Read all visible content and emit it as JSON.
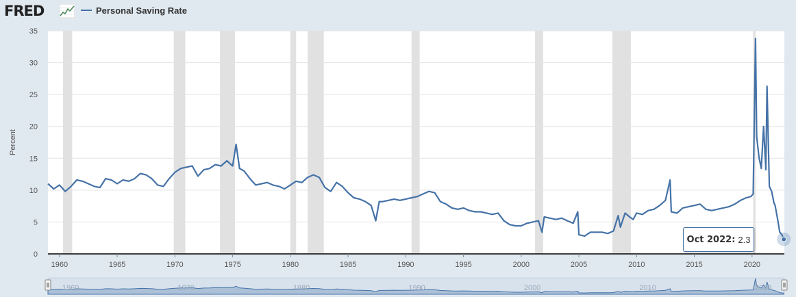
{
  "header": {
    "logo_text": "FRED",
    "logo_icon": "line-chart-icon",
    "legend_label": "Personal Saving Rate",
    "series_color": "#4572a7"
  },
  "tooltip": {
    "date": "Oct 2022:",
    "value": "2.3"
  },
  "chart_data": {
    "type": "line",
    "ylabel": "Percent",
    "xlabel": "",
    "ylim": [
      0,
      35
    ],
    "xlim": [
      1959.0,
      2022.8
    ],
    "y_ticks": [
      "0",
      "5",
      "10",
      "15",
      "20",
      "25",
      "30",
      "35"
    ],
    "x_ticks": [
      "1960",
      "1965",
      "1970",
      "1975",
      "1980",
      "1985",
      "1990",
      "1995",
      "2000",
      "2005",
      "2010",
      "2015",
      "2020"
    ],
    "grid": "horizontal",
    "recessions": [
      [
        1960.3,
        1961.1
      ],
      [
        1969.9,
        1970.9
      ],
      [
        1973.9,
        1975.2
      ],
      [
        1980.0,
        1980.5
      ],
      [
        1981.5,
        1982.9
      ],
      [
        1990.5,
        1991.2
      ],
      [
        2001.2,
        2001.9
      ],
      [
        2007.9,
        2009.5
      ],
      [
        2020.1,
        2020.3
      ]
    ],
    "series": [
      {
        "name": "Personal Saving Rate",
        "color": "#4572a7",
        "x": [
          1959.0,
          1959.5,
          1960.0,
          1960.5,
          1961.0,
          1961.5,
          1962.0,
          1962.5,
          1963.0,
          1963.5,
          1964.0,
          1964.5,
          1965.0,
          1965.5,
          1966.0,
          1966.5,
          1967.0,
          1967.5,
          1968.0,
          1968.5,
          1969.0,
          1969.5,
          1970.0,
          1970.5,
          1971.0,
          1971.5,
          1972.0,
          1972.5,
          1973.0,
          1973.5,
          1974.0,
          1974.5,
          1975.0,
          1975.3,
          1975.6,
          1976.0,
          1976.5,
          1977.0,
          1977.5,
          1978.0,
          1978.5,
          1979.0,
          1979.5,
          1980.0,
          1980.5,
          1981.0,
          1981.5,
          1982.0,
          1982.5,
          1983.0,
          1983.5,
          1984.0,
          1984.5,
          1985.0,
          1985.5,
          1986.0,
          1986.5,
          1987.0,
          1987.4,
          1987.7,
          1988.0,
          1988.5,
          1989.0,
          1989.5,
          1990.0,
          1990.5,
          1991.0,
          1991.5,
          1992.0,
          1992.5,
          1993.0,
          1993.5,
          1994.0,
          1994.5,
          1995.0,
          1995.5,
          1996.0,
          1996.5,
          1997.0,
          1997.5,
          1998.0,
          1998.5,
          1999.0,
          1999.5,
          2000.0,
          2000.5,
          2001.0,
          2001.5,
          2001.8,
          2002.0,
          2002.5,
          2003.0,
          2003.5,
          2004.0,
          2004.5,
          2004.9,
          2005.0,
          2005.5,
          2006.0,
          2006.5,
          2007.0,
          2007.5,
          2008.0,
          2008.4,
          2008.6,
          2009.0,
          2009.4,
          2009.7,
          2010.0,
          2010.5,
          2011.0,
          2011.5,
          2012.0,
          2012.5,
          2012.9,
          2013.0,
          2013.5,
          2014.0,
          2014.5,
          2015.0,
          2015.5,
          2016.0,
          2016.5,
          2017.0,
          2017.5,
          2018.0,
          2018.5,
          2019.0,
          2019.5,
          2019.9,
          2020.1,
          2020.3,
          2020.4,
          2020.6,
          2020.8,
          2021.0,
          2021.2,
          2021.3,
          2021.5,
          2021.7,
          2021.9,
          2022.0,
          2022.2,
          2022.4,
          2022.6,
          2022.75
        ],
        "y": [
          11.0,
          10.2,
          10.8,
          9.8,
          10.6,
          11.6,
          11.4,
          11.0,
          10.6,
          10.4,
          11.8,
          11.6,
          11.0,
          11.6,
          11.4,
          11.8,
          12.6,
          12.4,
          11.8,
          10.8,
          10.6,
          11.8,
          12.8,
          13.4,
          13.6,
          13.8,
          12.2,
          13.2,
          13.4,
          14.0,
          13.8,
          14.6,
          13.8,
          17.2,
          13.4,
          13.0,
          11.8,
          10.8,
          11.0,
          11.2,
          10.8,
          10.6,
          10.2,
          10.8,
          11.4,
          11.2,
          12.0,
          12.4,
          12.0,
          10.4,
          9.8,
          11.2,
          10.6,
          9.6,
          8.8,
          8.6,
          8.2,
          7.6,
          5.2,
          8.2,
          8.2,
          8.4,
          8.6,
          8.4,
          8.6,
          8.8,
          9.0,
          9.4,
          9.8,
          9.6,
          8.2,
          7.8,
          7.2,
          7.0,
          7.2,
          6.8,
          6.6,
          6.6,
          6.4,
          6.2,
          6.4,
          5.2,
          4.6,
          4.4,
          4.4,
          4.8,
          5.0,
          5.2,
          3.4,
          5.8,
          5.6,
          5.4,
          5.6,
          5.2,
          4.8,
          6.6,
          3.0,
          2.8,
          3.4,
          3.4,
          3.4,
          3.2,
          3.6,
          6.0,
          4.2,
          6.4,
          5.8,
          5.4,
          6.4,
          6.2,
          6.8,
          7.0,
          7.6,
          8.4,
          11.6,
          6.6,
          6.4,
          7.2,
          7.4,
          7.6,
          7.8,
          7.0,
          6.8,
          7.0,
          7.2,
          7.4,
          7.8,
          8.4,
          8.8,
          9.0,
          9.4,
          33.8,
          18.4,
          15.2,
          13.4,
          20.0,
          13.2,
          26.3,
          10.6,
          9.8,
          8.0,
          7.6,
          5.6,
          3.4,
          3.0,
          2.3
        ]
      }
    ]
  }
}
